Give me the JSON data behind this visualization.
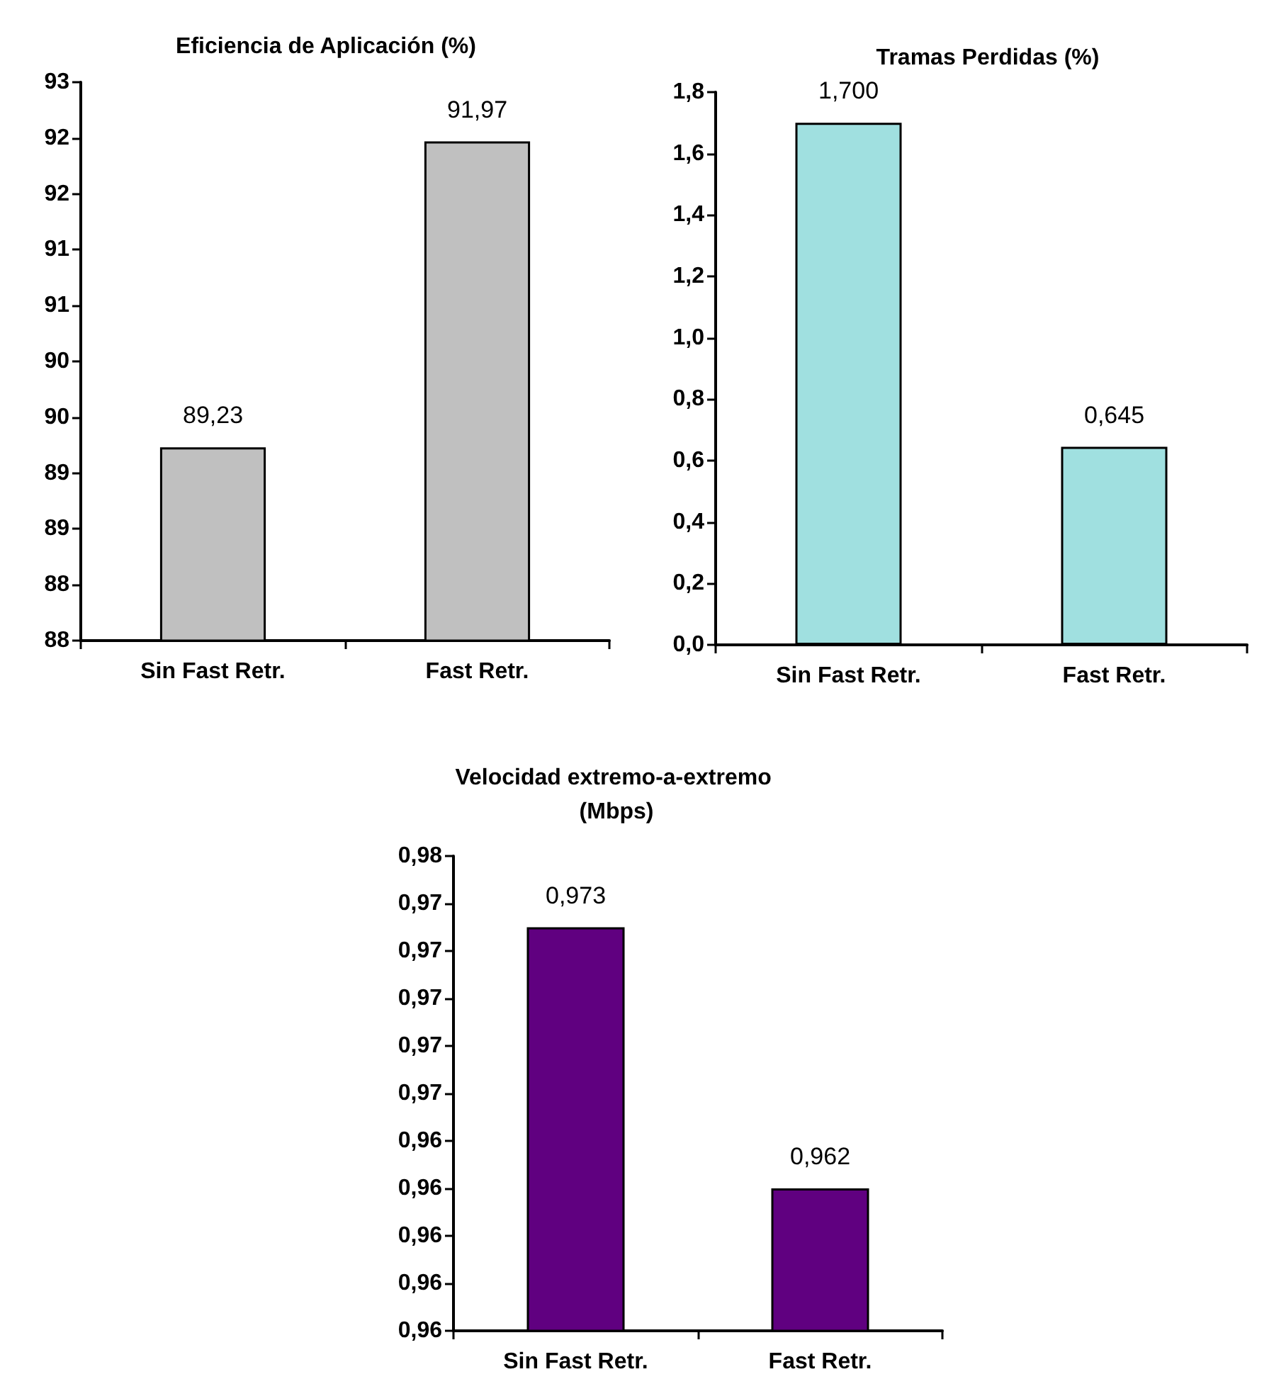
{
  "chart_data": [
    {
      "type": "bar",
      "title": "Eficiencia de Aplicación (%)",
      "categories": [
        "Sin Fast Retr.",
        "Fast Retr."
      ],
      "values": [
        89.23,
        91.97
      ],
      "color": "#c0c0c0",
      "value_labels": [
        "89,23",
        "91,97"
      ],
      "ylim": [
        87.5,
        92.5
      ],
      "yticks": [
        {
          "value": 87.5,
          "label": "88"
        },
        {
          "value": 88,
          "label": "88"
        },
        {
          "value": 88.5,
          "label": "89"
        },
        {
          "value": 89,
          "label": "89"
        },
        {
          "value": 89.5,
          "label": "90"
        },
        {
          "value": 90,
          "label": "90"
        },
        {
          "value": 90.5,
          "label": "91"
        },
        {
          "value": 91,
          "label": "91"
        },
        {
          "value": 91.5,
          "label": "92"
        },
        {
          "value": 92,
          "label": "92"
        },
        {
          "value": 92.5,
          "label": "93"
        }
      ]
    },
    {
      "type": "bar",
      "title": "Tramas Perdidas (%)",
      "categories": [
        "Sin Fast Retr.",
        "Fast Retr."
      ],
      "values": [
        1.7,
        0.645
      ],
      "color": "#a0e0e0",
      "value_labels": [
        "1,700",
        "0,645"
      ],
      "ylim": [
        0,
        1.8
      ],
      "yticks": [
        {
          "value": 0,
          "label": "0,0"
        },
        {
          "value": 0.2,
          "label": "0,2"
        },
        {
          "value": 0.4,
          "label": "0,4"
        },
        {
          "value": 0.6,
          "label": "0,6"
        },
        {
          "value": 0.8,
          "label": "0,8"
        },
        {
          "value": 1,
          "label": "1,0"
        },
        {
          "value": 1.2,
          "label": "1,2"
        },
        {
          "value": 1.4,
          "label": "1,4"
        },
        {
          "value": 1.6,
          "label": "1,6"
        },
        {
          "value": 1.8,
          "label": "1,8"
        }
      ]
    },
    {
      "type": "bar",
      "title": "Velocidad extremo-a-extremo (Mbps)",
      "categories": [
        "Sin Fast Retr.",
        "Fast Retr."
      ],
      "values": [
        0.973,
        0.962
      ],
      "color": "#600080",
      "value_labels": [
        "0,973",
        "0,962"
      ],
      "ylim": [
        0.956,
        0.976
      ],
      "yticks": [
        {
          "value": 0.956,
          "label": "0,96"
        },
        {
          "value": 0.958,
          "label": "0,96"
        },
        {
          "value": 0.96,
          "label": "0,96"
        },
        {
          "value": 0.962,
          "label": "0,96"
        },
        {
          "value": 0.964,
          "label": "0,96"
        },
        {
          "value": 0.966,
          "label": "0,97"
        },
        {
          "value": 0.968,
          "label": "0,97"
        },
        {
          "value": 0.97,
          "label": "0,97"
        },
        {
          "value": 0.972,
          "label": "0,97"
        },
        {
          "value": 0.974,
          "label": "0,97"
        },
        {
          "value": 0.976,
          "label": "0,98"
        }
      ]
    }
  ]
}
